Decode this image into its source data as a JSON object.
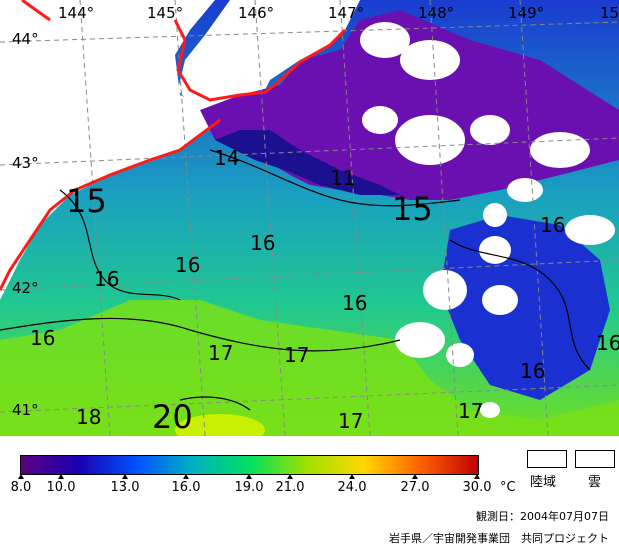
{
  "map": {
    "longitude_labels": [
      "144°",
      "145°",
      "146°",
      "147°",
      "148°",
      "149°",
      "15"
    ],
    "latitude_labels": [
      "44°",
      "43°",
      "42°",
      "41°"
    ],
    "isotherm_labels": [
      "14",
      "11",
      "15",
      "15",
      "16",
      "16",
      "16",
      "16",
      "16",
      "16",
      "16",
      "16",
      "17",
      "17",
      "17",
      "17",
      "18",
      "20"
    ]
  },
  "legend": {
    "ticks": [
      "8.0",
      "10.0",
      "13.0",
      "16.0",
      "19.0",
      "21.0",
      "24.0",
      "27.0",
      "30.0"
    ],
    "unit": "°C",
    "land_label": "陸域",
    "cloud_label": "雲",
    "colors": [
      "#5a0080",
      "#1a00b0",
      "#0050ff",
      "#00b0c0",
      "#00e060",
      "#a0e000",
      "#ffd800",
      "#ff6000",
      "#c00000"
    ]
  },
  "footer": {
    "date": "観測日：2004年07月07日",
    "credit": "岩手県／宇宙開発事業団　共同プロジェクト"
  }
}
